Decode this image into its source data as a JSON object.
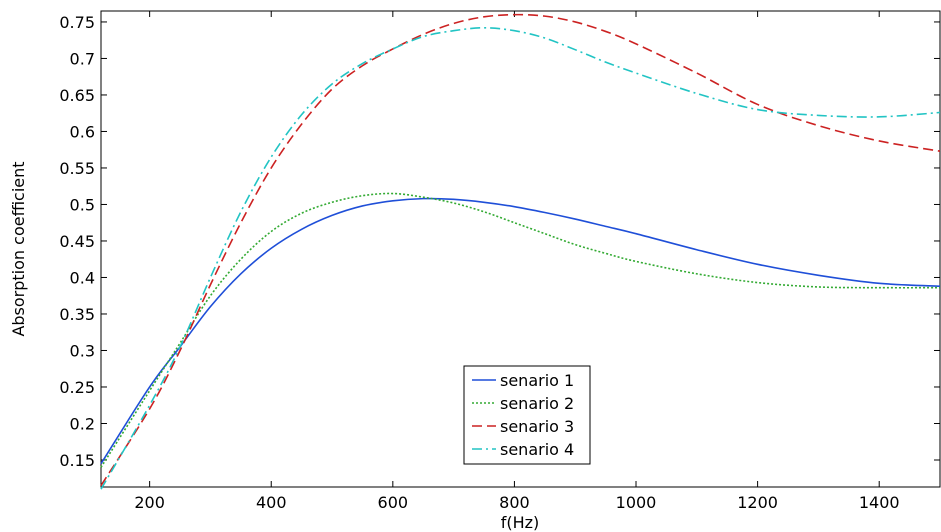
{
  "chart_data": {
    "type": "line",
    "xlabel": "f(Hz)",
    "ylabel": "Absorption coefficient",
    "xlim": [
      120,
      1500
    ],
    "ylim": [
      0.113,
      0.765
    ],
    "xticks": [
      200,
      400,
      600,
      800,
      1000,
      1200,
      1400
    ],
    "xtick_labels": [
      "200",
      "400",
      "600",
      "800",
      "1000",
      "1200",
      "1400"
    ],
    "yticks": [
      0.15,
      0.2,
      0.25,
      0.3,
      0.35,
      0.4,
      0.45,
      0.5,
      0.55,
      0.6,
      0.65,
      0.7,
      0.75
    ],
    "ytick_labels": [
      "0.15",
      "0.2",
      "0.25",
      "0.3",
      "0.35",
      "0.4",
      "0.45",
      "0.5",
      "0.55",
      "0.6",
      "0.65",
      "0.7",
      "0.75"
    ],
    "grid": false,
    "legend_position": "bottom-center",
    "series": [
      {
        "name": "senario 1",
        "color": "#1f4fd8",
        "dash": "solid",
        "x": [
          120,
          200,
          250,
          300,
          350,
          400,
          450,
          500,
          550,
          600,
          650,
          700,
          750,
          800,
          850,
          900,
          950,
          1000,
          1100,
          1200,
          1300,
          1400,
          1500
        ],
        "y": [
          0.145,
          0.25,
          0.305,
          0.36,
          0.405,
          0.44,
          0.466,
          0.485,
          0.498,
          0.505,
          0.508,
          0.507,
          0.503,
          0.497,
          0.489,
          0.48,
          0.47,
          0.46,
          0.438,
          0.418,
          0.403,
          0.392,
          0.388
        ]
      },
      {
        "name": "senario 2",
        "color": "#33aa33",
        "dash": "dotted",
        "x": [
          120,
          200,
          250,
          300,
          350,
          400,
          450,
          500,
          550,
          600,
          650,
          700,
          750,
          800,
          850,
          900,
          950,
          1000,
          1100,
          1200,
          1300,
          1400,
          1500
        ],
        "y": [
          0.14,
          0.245,
          0.31,
          0.375,
          0.425,
          0.463,
          0.488,
          0.503,
          0.512,
          0.515,
          0.51,
          0.502,
          0.49,
          0.475,
          0.46,
          0.445,
          0.433,
          0.422,
          0.405,
          0.393,
          0.387,
          0.386,
          0.386
        ]
      },
      {
        "name": "senario 3",
        "color": "#cc2222",
        "dash": "dashed",
        "x": [
          120,
          200,
          250,
          300,
          350,
          400,
          450,
          500,
          550,
          600,
          650,
          700,
          750,
          800,
          850,
          900,
          950,
          1000,
          1100,
          1200,
          1300,
          1400,
          1500
        ],
        "y": [
          0.115,
          0.22,
          0.3,
          0.39,
          0.475,
          0.55,
          0.61,
          0.658,
          0.69,
          0.713,
          0.733,
          0.748,
          0.757,
          0.76,
          0.758,
          0.75,
          0.737,
          0.72,
          0.68,
          0.637,
          0.608,
          0.587,
          0.573
        ]
      },
      {
        "name": "senario 4",
        "color": "#22c4c4",
        "dash": "dashdot",
        "x": [
          120,
          200,
          250,
          300,
          350,
          400,
          450,
          500,
          550,
          600,
          650,
          700,
          750,
          800,
          850,
          900,
          950,
          1000,
          1100,
          1200,
          1300,
          1400,
          1500
        ],
        "y": [
          0.11,
          0.225,
          0.305,
          0.4,
          0.49,
          0.565,
          0.623,
          0.665,
          0.693,
          0.713,
          0.73,
          0.738,
          0.742,
          0.738,
          0.728,
          0.712,
          0.695,
          0.68,
          0.652,
          0.63,
          0.622,
          0.62,
          0.626
        ]
      }
    ]
  }
}
